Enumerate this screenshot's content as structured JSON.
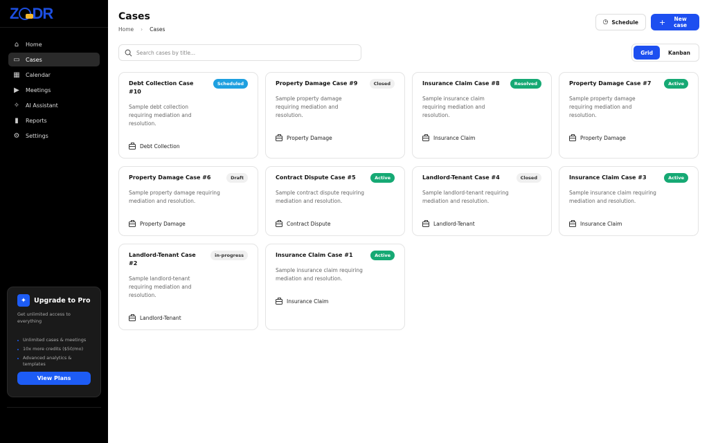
{
  "brand": {
    "logo_text": "ZODR"
  },
  "sidebar": {
    "items": [
      {
        "label": "Home",
        "icon": "home-icon",
        "glyph": "⌂"
      },
      {
        "label": "Cases",
        "icon": "folder-icon",
        "glyph": "▭",
        "active": true
      },
      {
        "label": "Calendar",
        "icon": "calendar-icon",
        "glyph": "▦"
      },
      {
        "label": "Meetings",
        "icon": "video-icon",
        "glyph": "▶"
      },
      {
        "label": "AI Assistant",
        "icon": "sparkle-icon",
        "glyph": "✧"
      },
      {
        "label": "Reports",
        "icon": "bar-chart-icon",
        "glyph": "▮"
      },
      {
        "label": "Settings",
        "icon": "gear-icon",
        "glyph": "⚙"
      }
    ]
  },
  "upgrade": {
    "title": "Upgrade to Pro",
    "subtitle": "Get unlimited access to everything",
    "features": [
      "Unlimited cases & meetings",
      "10x more credits ($50/mo)",
      "Advanced analytics & templates"
    ],
    "button": "View Plans"
  },
  "header": {
    "title": "Cases",
    "breadcrumb": [
      "Home",
      "Cases"
    ],
    "schedule_label": "Schedule",
    "new_case_label": "New case"
  },
  "search": {
    "placeholder": "Search cases by title...",
    "value": ""
  },
  "view_toggle": {
    "options": [
      "Grid",
      "Kanban"
    ],
    "selected": "Grid"
  },
  "status_colors": {
    "Scheduled": {
      "bg": "#1ea0e0",
      "fg": "#fff"
    },
    "Closed": {
      "bg": "#f0f0f0",
      "fg": "#333"
    },
    "Resolved": {
      "bg": "#16a974",
      "fg": "#fff"
    },
    "Active": {
      "bg": "#16a974",
      "fg": "#fff"
    },
    "Draft": {
      "bg": "#f0f0f0",
      "fg": "#333"
    },
    "in-progress": {
      "bg": "#f0f0f0",
      "fg": "#333"
    }
  },
  "cases": [
    {
      "title": "Debt Collection Case #10",
      "status": "Scheduled",
      "description": "Sample debt collection requiring mediation and resolution.",
      "category": "Debt Collection"
    },
    {
      "title": "Property Damage Case #9",
      "status": "Closed",
      "description": "Sample property damage requiring mediation and resolution.",
      "category": "Property Damage"
    },
    {
      "title": "Insurance Claim Case #8",
      "status": "Resolved",
      "description": "Sample insurance claim requiring mediation and resolution.",
      "category": "Insurance Claim"
    },
    {
      "title": "Property Damage Case #7",
      "status": "Active",
      "description": "Sample property damage requiring mediation and resolution.",
      "category": "Property Damage"
    },
    {
      "title": "Property Damage Case #6",
      "status": "Draft",
      "description": "Sample property damage requiring mediation and resolution.",
      "category": "Property Damage"
    },
    {
      "title": "Contract Dispute Case #5",
      "status": "Active",
      "description": "Sample contract dispute requiring mediation and resolution.",
      "category": "Contract Dispute"
    },
    {
      "title": "Landlord-Tenant Case #4",
      "status": "Closed",
      "description": "Sample landlord-tenant requiring mediation and resolution.",
      "category": "Landlord-Tenant"
    },
    {
      "title": "Insurance Claim Case #3",
      "status": "Active",
      "description": "Sample insurance claim requiring mediation and resolution.",
      "category": "Insurance Claim"
    },
    {
      "title": "Landlord-Tenant Case #2",
      "status": "in-progress",
      "description": "Sample landlord-tenant requiring mediation and resolution.",
      "category": "Landlord-Tenant"
    },
    {
      "title": "Insurance Claim Case #1",
      "status": "Active",
      "description": "Sample insurance claim requiring mediation and resolution.",
      "category": "Insurance Claim"
    }
  ]
}
